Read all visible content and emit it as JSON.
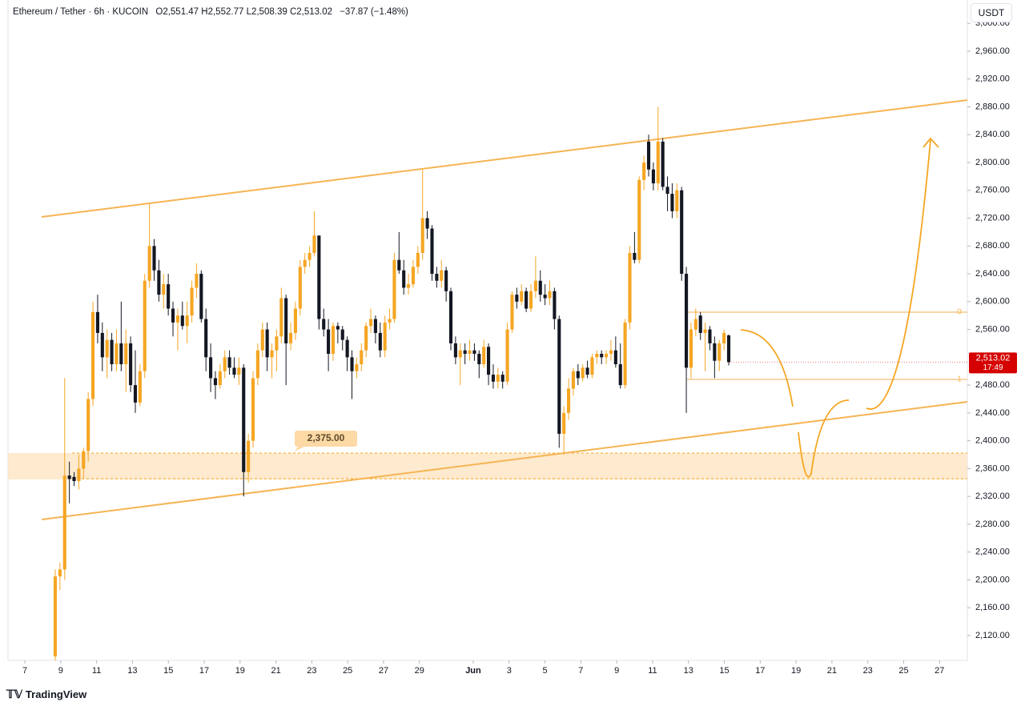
{
  "chart_data": {
    "type": "candlestick",
    "header": {
      "symbol": "Ethereum / Tether · 6h · KUCOIN",
      "o_label": "O",
      "o": "2,551.47",
      "h_label": "H",
      "h": "2,552.77",
      "l_label": "L",
      "l": "2,508.39",
      "c_label": "C",
      "c": "2,513.02",
      "change": "−37.87 (−1.48%)"
    },
    "currency_button": "USDT",
    "brand": "TradingView",
    "up_color": "#f5a623",
    "down_color": "#131722",
    "ylim": [
      2084.3,
      3033.6
    ],
    "yticks": [
      {
        "value": 3000,
        "label": "3,000.00"
      },
      {
        "value": 2960,
        "label": "2,960.00"
      },
      {
        "value": 2920,
        "label": "2,920.00"
      },
      {
        "value": 2880,
        "label": "2,880.00"
      },
      {
        "value": 2840,
        "label": "2,840.00"
      },
      {
        "value": 2800,
        "label": "2,800.00"
      },
      {
        "value": 2760,
        "label": "2,760.00"
      },
      {
        "value": 2720,
        "label": "2,720.00"
      },
      {
        "value": 2680,
        "label": "2,680.00"
      },
      {
        "value": 2640,
        "label": "2,640.00"
      },
      {
        "value": 2600,
        "label": "2,600.00"
      },
      {
        "value": 2560,
        "label": "2,560.00"
      },
      {
        "value": 2480,
        "label": "2,480.00"
      },
      {
        "value": 2440,
        "label": "2,440.00"
      },
      {
        "value": 2400,
        "label": "2,400.00"
      },
      {
        "value": 2360,
        "label": "2,360.00"
      },
      {
        "value": 2320,
        "label": "2,320.00"
      },
      {
        "value": 2280,
        "label": "2,280.00"
      },
      {
        "value": 2240,
        "label": "2,240.00"
      },
      {
        "value": 2200,
        "label": "2,200.00"
      },
      {
        "value": 2160,
        "label": "2,160.00"
      },
      {
        "value": 2120,
        "label": "2,120.00"
      }
    ],
    "xlim": [
      6.06,
      59.55
    ],
    "xticks": [
      {
        "value": 7,
        "label": "7"
      },
      {
        "value": 9,
        "label": "9"
      },
      {
        "value": 11,
        "label": "11"
      },
      {
        "value": 13,
        "label": "13"
      },
      {
        "value": 15,
        "label": "15"
      },
      {
        "value": 17,
        "label": "17"
      },
      {
        "value": 19,
        "label": "19"
      },
      {
        "value": 21,
        "label": "21"
      },
      {
        "value": 23,
        "label": "23"
      },
      {
        "value": 25,
        "label": "25"
      },
      {
        "value": 27,
        "label": "27"
      },
      {
        "value": 29,
        "label": "29"
      },
      {
        "value": 32,
        "label": "Jun"
      },
      {
        "value": 34,
        "label": "3"
      },
      {
        "value": 36,
        "label": "5"
      },
      {
        "value": 38,
        "label": "7"
      },
      {
        "value": 40,
        "label": "9"
      },
      {
        "value": 42,
        "label": "11"
      },
      {
        "value": 44,
        "label": "13"
      },
      {
        "value": 46,
        "label": "15"
      },
      {
        "value": 48,
        "label": "17"
      },
      {
        "value": 50,
        "label": "19"
      },
      {
        "value": 52,
        "label": "21"
      },
      {
        "value": 54,
        "label": "23"
      },
      {
        "value": 56,
        "label": "25"
      },
      {
        "value": 58,
        "label": "27"
      }
    ],
    "price_tag": {
      "value": 2513.02,
      "label": "2,513.02",
      "countdown": "17:49"
    },
    "annotation": "2,375.00",
    "fib_labels": [
      "0",
      "1"
    ],
    "candles": [
      [
        2090,
        2215,
        2084,
        2205
      ],
      [
        2205,
        2225,
        2185,
        2215
      ],
      [
        2215,
        2490,
        2200,
        2350
      ],
      [
        2350,
        2370,
        2310,
        2345
      ],
      [
        2348,
        2355,
        2335,
        2342
      ],
      [
        2342,
        2380,
        2330,
        2360
      ],
      [
        2360,
        2390,
        2345,
        2385
      ],
      [
        2385,
        2470,
        2370,
        2460
      ],
      [
        2460,
        2600,
        2450,
        2585
      ],
      [
        2585,
        2610,
        2540,
        2555
      ],
      [
        2555,
        2570,
        2500,
        2520
      ],
      [
        2520,
        2560,
        2490,
        2545
      ],
      [
        2545,
        2555,
        2500,
        2510
      ],
      [
        2510,
        2560,
        2500,
        2540
      ],
      [
        2540,
        2600,
        2500,
        2510
      ],
      [
        2510,
        2560,
        2470,
        2540
      ],
      [
        2540,
        2550,
        2470,
        2480
      ],
      [
        2480,
        2530,
        2440,
        2455
      ],
      [
        2455,
        2510,
        2450,
        2500
      ],
      [
        2500,
        2640,
        2490,
        2630
      ],
      [
        2630,
        2740,
        2620,
        2680
      ],
      [
        2680,
        2690,
        2630,
        2645
      ],
      [
        2645,
        2660,
        2600,
        2610
      ],
      [
        2610,
        2640,
        2590,
        2625
      ],
      [
        2625,
        2640,
        2580,
        2590
      ],
      [
        2590,
        2600,
        2550,
        2570
      ],
      [
        2570,
        2590,
        2530,
        2580
      ],
      [
        2580,
        2600,
        2560,
        2565
      ],
      [
        2565,
        2600,
        2540,
        2580
      ],
      [
        2580,
        2630,
        2570,
        2620
      ],
      [
        2620,
        2655,
        2605,
        2640
      ],
      [
        2640,
        2645,
        2570,
        2575
      ],
      [
        2575,
        2590,
        2500,
        2520
      ],
      [
        2520,
        2540,
        2470,
        2490
      ],
      [
        2490,
        2500,
        2460,
        2480
      ],
      [
        2480,
        2510,
        2475,
        2500
      ],
      [
        2500,
        2530,
        2490,
        2520
      ],
      [
        2520,
        2530,
        2495,
        2505
      ],
      [
        2505,
        2520,
        2490,
        2495
      ],
      [
        2495,
        2520,
        2480,
        2505
      ],
      [
        2505,
        2510,
        2320,
        2355
      ],
      [
        2355,
        2410,
        2340,
        2400
      ],
      [
        2400,
        2500,
        2390,
        2490
      ],
      [
        2490,
        2540,
        2480,
        2530
      ],
      [
        2530,
        2570,
        2520,
        2560
      ],
      [
        2560,
        2570,
        2500,
        2520
      ],
      [
        2520,
        2540,
        2490,
        2530
      ],
      [
        2530,
        2560,
        2500,
        2550
      ],
      [
        2550,
        2620,
        2540,
        2605
      ],
      [
        2605,
        2610,
        2480,
        2540
      ],
      [
        2540,
        2570,
        2530,
        2555
      ],
      [
        2555,
        2600,
        2545,
        2590
      ],
      [
        2590,
        2660,
        2580,
        2650
      ],
      [
        2650,
        2670,
        2640,
        2660
      ],
      [
        2660,
        2680,
        2650,
        2670
      ],
      [
        2670,
        2730,
        2665,
        2695
      ],
      [
        2695,
        2695,
        2560,
        2575
      ],
      [
        2575,
        2590,
        2550,
        2560
      ],
      [
        2560,
        2575,
        2500,
        2525
      ],
      [
        2525,
        2570,
        2515,
        2565
      ],
      [
        2565,
        2570,
        2540,
        2560
      ],
      [
        2560,
        2565,
        2530,
        2545
      ],
      [
        2545,
        2550,
        2500,
        2520
      ],
      [
        2520,
        2530,
        2460,
        2500
      ],
      [
        2500,
        2520,
        2490,
        2510
      ],
      [
        2510,
        2540,
        2500,
        2530
      ],
      [
        2530,
        2570,
        2520,
        2565
      ],
      [
        2565,
        2590,
        2555,
        2575
      ],
      [
        2575,
        2580,
        2540,
        2555
      ],
      [
        2555,
        2570,
        2520,
        2530
      ],
      [
        2530,
        2580,
        2520,
        2570
      ],
      [
        2570,
        2590,
        2560,
        2575
      ],
      [
        2575,
        2670,
        2570,
        2660
      ],
      [
        2660,
        2700,
        2640,
        2645
      ],
      [
        2645,
        2660,
        2610,
        2620
      ],
      [
        2620,
        2640,
        2610,
        2625
      ],
      [
        2625,
        2660,
        2620,
        2650
      ],
      [
        2650,
        2680,
        2640,
        2670
      ],
      [
        2670,
        2790,
        2660,
        2720
      ],
      [
        2720,
        2730,
        2690,
        2705
      ],
      [
        2705,
        2710,
        2630,
        2640
      ],
      [
        2640,
        2650,
        2620,
        2630
      ],
      [
        2630,
        2660,
        2620,
        2645
      ],
      [
        2645,
        2650,
        2600,
        2615
      ],
      [
        2615,
        2620,
        2530,
        2540
      ],
      [
        2540,
        2550,
        2510,
        2520
      ],
      [
        2520,
        2540,
        2480,
        2530
      ],
      [
        2530,
        2540,
        2510,
        2525
      ],
      [
        2525,
        2545,
        2515,
        2530
      ],
      [
        2530,
        2540,
        2515,
        2525
      ],
      [
        2525,
        2530,
        2490,
        2510
      ],
      [
        2510,
        2545,
        2505,
        2535
      ],
      [
        2535,
        2540,
        2480,
        2495
      ],
      [
        2495,
        2510,
        2475,
        2485
      ],
      [
        2485,
        2505,
        2475,
        2495
      ],
      [
        2495,
        2500,
        2475,
        2485
      ],
      [
        2485,
        2570,
        2480,
        2560
      ],
      [
        2560,
        2615,
        2555,
        2610
      ],
      [
        2610,
        2620,
        2590,
        2600
      ],
      [
        2600,
        2625,
        2595,
        2615
      ],
      [
        2615,
        2620,
        2585,
        2590
      ],
      [
        2590,
        2625,
        2585,
        2615
      ],
      [
        2615,
        2665,
        2605,
        2630
      ],
      [
        2630,
        2645,
        2600,
        2610
      ],
      [
        2610,
        2625,
        2595,
        2605
      ],
      [
        2605,
        2630,
        2595,
        2615
      ],
      [
        2615,
        2620,
        2560,
        2575
      ],
      [
        2575,
        2580,
        2390,
        2410
      ],
      [
        2410,
        2450,
        2380,
        2440
      ],
      [
        2440,
        2490,
        2430,
        2475
      ],
      [
        2475,
        2505,
        2465,
        2500
      ],
      [
        2500,
        2510,
        2480,
        2490
      ],
      [
        2490,
        2510,
        2485,
        2505
      ],
      [
        2505,
        2515,
        2490,
        2495
      ],
      [
        2495,
        2525,
        2490,
        2520
      ],
      [
        2520,
        2530,
        2510,
        2525
      ],
      [
        2525,
        2530,
        2510,
        2520
      ],
      [
        2520,
        2530,
        2510,
        2525
      ],
      [
        2525,
        2545,
        2515,
        2530
      ],
      [
        2530,
        2550,
        2505,
        2510
      ],
      [
        2510,
        2540,
        2475,
        2480
      ],
      [
        2480,
        2575,
        2475,
        2570
      ],
      [
        2570,
        2680,
        2560,
        2670
      ],
      [
        2670,
        2700,
        2655,
        2660
      ],
      [
        2660,
        2780,
        2655,
        2775
      ],
      [
        2775,
        2810,
        2760,
        2800
      ],
      [
        2830,
        2840,
        2780,
        2790
      ],
      [
        2790,
        2800,
        2760,
        2770
      ],
      [
        2770,
        2880,
        2760,
        2830
      ],
      [
        2830,
        2835,
        2760,
        2765
      ],
      [
        2765,
        2780,
        2730,
        2755
      ],
      [
        2755,
        2770,
        2720,
        2730
      ],
      [
        2730,
        2770,
        2720,
        2760
      ],
      [
        2760,
        2765,
        2630,
        2640
      ],
      [
        2640,
        2650,
        2440,
        2505
      ],
      [
        2505,
        2570,
        2490,
        2560
      ],
      [
        2560,
        2590,
        2550,
        2575
      ],
      [
        2580,
        2585,
        2545,
        2555
      ],
      [
        2555,
        2570,
        2500,
        2560
      ],
      [
        2560,
        2565,
        2530,
        2540
      ],
      [
        2540,
        2550,
        2490,
        2515
      ],
      [
        2515,
        2545,
        2500,
        2540
      ],
      [
        2540,
        2560,
        2530,
        2555
      ],
      [
        2551.47,
        2552.77,
        2508.39,
        2513.02
      ]
    ]
  }
}
